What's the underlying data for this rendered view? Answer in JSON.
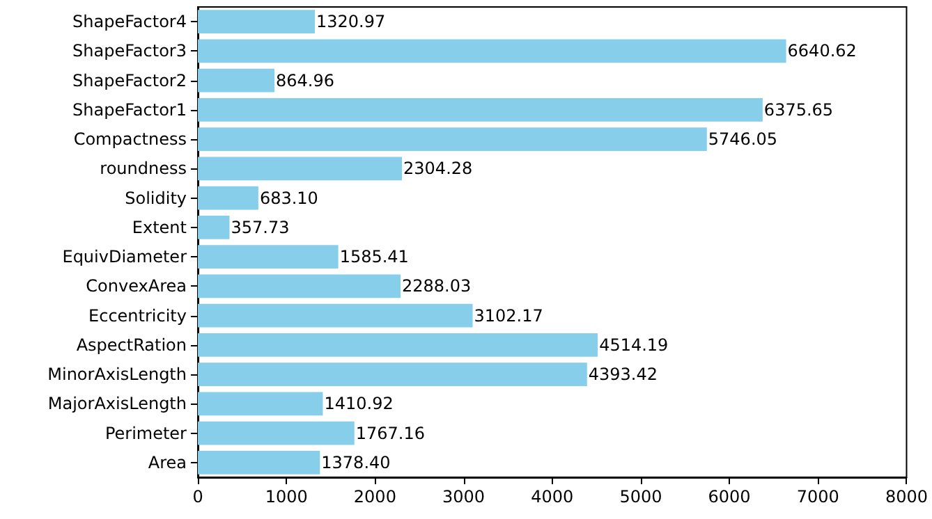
{
  "chart_data": {
    "type": "bar",
    "orientation": "horizontal",
    "categories": [
      "ShapeFactor4",
      "ShapeFactor3",
      "ShapeFactor2",
      "ShapeFactor1",
      "Compactness",
      "roundness",
      "Solidity",
      "Extent",
      "EquivDiameter",
      "ConvexArea",
      "Eccentricity",
      "AspectRation",
      "MinorAxisLength",
      "MajorAxisLength",
      "Perimeter",
      "Area"
    ],
    "values": [
      1320.97,
      6640.62,
      864.96,
      6375.65,
      5746.05,
      2304.28,
      683.1,
      357.73,
      1585.41,
      2288.03,
      3102.17,
      4514.19,
      4393.42,
      1410.92,
      1767.16,
      1378.4
    ],
    "value_labels": [
      "1320.97",
      "6640.62",
      "864.96",
      "6375.65",
      "5746.05",
      "2304.28",
      "683.10",
      "357.73",
      "1585.41",
      "2288.03",
      "3102.17",
      "4514.19",
      "4393.42",
      "1410.92",
      "1767.16",
      "1378.40"
    ],
    "color": "#87ceeb",
    "xlim": [
      0,
      8000
    ],
    "xticks": [
      0,
      1000,
      2000,
      3000,
      4000,
      5000,
      6000,
      7000,
      8000
    ],
    "grid": false
  }
}
